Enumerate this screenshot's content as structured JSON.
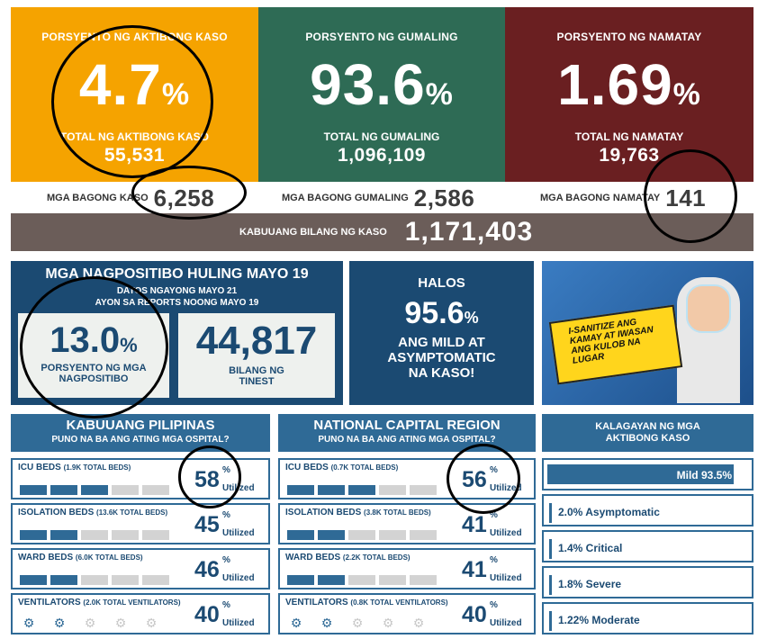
{
  "summary": {
    "active": {
      "title": "PORSYENTO NG AKTIBONG KASO",
      "percent": "4.7",
      "pct_sign": "%",
      "sub": "TOTAL NG AKTIBONG KASO",
      "count": "55,531",
      "color": "#f5a300"
    },
    "recovered": {
      "title": "PORSYENTO NG GUMALING",
      "percent": "93.6",
      "pct_sign": "%",
      "sub": "TOTAL NG GUMALING",
      "count": "1,096,109",
      "color": "#2e6b55"
    },
    "deaths": {
      "title": "PORSYENTO NG NAMATAY",
      "percent": "1.69",
      "pct_sign": "%",
      "sub": "TOTAL NG NAMATAY",
      "count": "19,763",
      "color": "#6a1f21"
    }
  },
  "new_cases": {
    "label": "MGA BAGONG KASO",
    "value": "6,258"
  },
  "new_recovered": {
    "label": "MGA BAGONG GUMALING",
    "value": "2,586"
  },
  "new_deaths": {
    "label": "MGA BAGONG NAMATAY",
    "value": "141"
  },
  "total_cases": {
    "label": "KABUUANG BILANG NG KASO",
    "value": "1,171,403"
  },
  "positivity": {
    "title": "MGA NAGPOSITIBO HULING MAYO 19",
    "line1": "DATOS NGAYONG MAYO 21",
    "line2": "AYON SA REPORTS NOONG MAYO 19",
    "rate": "13.0",
    "rate_sign": "%",
    "rate_label1": "PORSYENTO NG MGA",
    "rate_label2": "NAGPOSITIBO",
    "tested": "44,817",
    "tested_label1": "BILANG NG",
    "tested_label2": "TINEST"
  },
  "mild": {
    "line1": "HALOS",
    "value": "95.6",
    "sign": "%",
    "line2": "ANG MILD AT",
    "line3": "ASYMPTOMATIC",
    "line4": "NA KASO!"
  },
  "poster": {
    "text1": "I-SANITIZE ANG",
    "text2": "KAMAY AT IWASAN",
    "text3": "ANG KULOB NA LUGAR"
  },
  "ph": {
    "title": "KABUUANG PILIPINAS",
    "subtitle": "PUNO NA BA ANG ATING MGA OSPITAL?",
    "rows": [
      {
        "label": "ICU BEDS",
        "detail": "(1.9K TOTAL BEDS)",
        "value": "58",
        "utilization": 0.58
      },
      {
        "label": "ISOLATION BEDS",
        "detail": "(13.6K TOTAL BEDS)",
        "value": "45",
        "utilization": 0.45
      },
      {
        "label": "WARD BEDS",
        "detail": "(6.0K TOTAL BEDS)",
        "value": "46",
        "utilization": 0.46
      },
      {
        "label": "VENTILATORS",
        "detail": "(2.0K TOTAL VENTILATORS)",
        "value": "40",
        "utilization": 0.4
      }
    ]
  },
  "ncr": {
    "title": "NATIONAL CAPITAL REGION",
    "subtitle": "PUNO NA BA ANG ATING MGA OSPITAL?",
    "rows": [
      {
        "label": "ICU BEDS",
        "detail": "(0.7K TOTAL BEDS)",
        "value": "56",
        "utilization": 0.56
      },
      {
        "label": "ISOLATION BEDS",
        "detail": "(3.8K TOTAL BEDS)",
        "value": "41",
        "utilization": 0.41
      },
      {
        "label": "WARD BEDS",
        "detail": "(2.2K TOTAL BEDS)",
        "value": "41",
        "utilization": 0.41
      },
      {
        "label": "VENTILATORS",
        "detail": "(0.8K TOTAL VENTILATORS)",
        "value": "40",
        "utilization": 0.4
      }
    ]
  },
  "pct_sign": "%",
  "utilized_label": "Utilized",
  "status": {
    "title1": "KALAGAYAN NG MGA",
    "title2": "AKTIBONG KASO",
    "items": [
      {
        "text": "Mild 93.5%",
        "share": 0.935
      },
      {
        "text": "2.0% Asymptomatic",
        "share": 0.02
      },
      {
        "text": "1.4% Critical",
        "share": 0.014
      },
      {
        "text": "1.8% Severe",
        "share": 0.018
      },
      {
        "text": "1.22% Moderate",
        "share": 0.0122
      }
    ]
  },
  "colors": {
    "navy": "#1b4a72",
    "bed_blue": "#2f6a96",
    "gray_band": "#6b5d59"
  }
}
